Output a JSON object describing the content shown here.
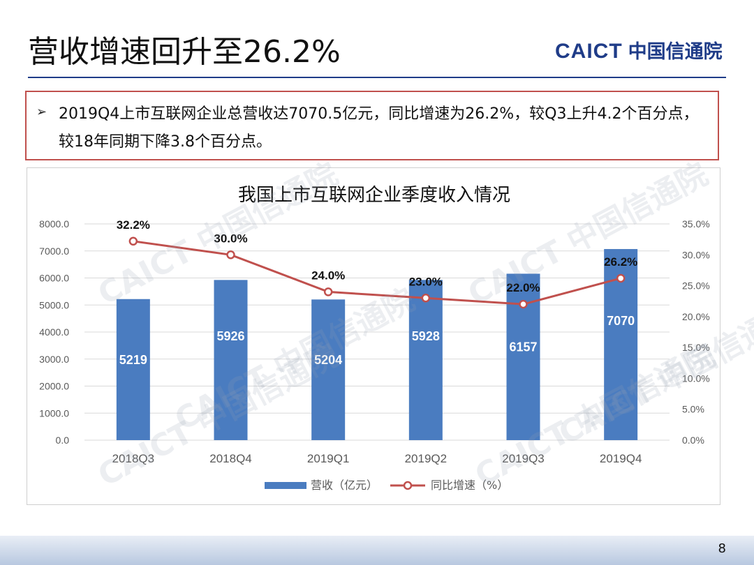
{
  "header": {
    "title": "营收增速回升至26.2%",
    "logo_en": "CAICT",
    "logo_cn": "中国信通院"
  },
  "summary": {
    "bullet": "➢",
    "text": "2019Q4上市互联网企业总营收达7070.5亿元，同比增速为26.2%，较Q3上升4.2个百分点，较18年同期下降3.8个百分点。"
  },
  "watermark_text": "CAICT 中国信通院",
  "page_number": "8",
  "colors": {
    "bar": "#4a7cc0",
    "line": "#c0504d",
    "accent": "#1f3c88"
  },
  "chart_data": {
    "type": "bar",
    "title": "我国上市互联网企业季度收入情况",
    "categories": [
      "2018Q3",
      "2018Q4",
      "2019Q1",
      "2019Q2",
      "2019Q3",
      "2019Q4"
    ],
    "series": [
      {
        "name": "营收（亿元）",
        "type": "bar",
        "axis": "left",
        "values": [
          5219,
          5926,
          5204,
          5928,
          6157,
          7070
        ],
        "labels": [
          "5219",
          "5926",
          "5204",
          "5928",
          "6157",
          "7070"
        ]
      },
      {
        "name": "同比增速（%）",
        "type": "line",
        "axis": "right",
        "values": [
          32.2,
          30.0,
          24.0,
          23.0,
          22.0,
          26.2
        ],
        "labels": [
          "32.2%",
          "30.0%",
          "24.0%",
          "23.0%",
          "22.0%",
          "26.2%"
        ]
      }
    ],
    "y_left": {
      "min": 0,
      "max": 8000,
      "step": 1000,
      "ticks": [
        "0.0",
        "1000.0",
        "2000.0",
        "3000.0",
        "4000.0",
        "5000.0",
        "6000.0",
        "7000.0",
        "8000.0"
      ]
    },
    "y_right": {
      "min": 0,
      "max": 35,
      "step": 5,
      "ticks": [
        "0.0%",
        "5.0%",
        "10.0%",
        "15.0%",
        "20.0%",
        "25.0%",
        "30.0%",
        "35.0%"
      ]
    },
    "legend": "bottom"
  }
}
